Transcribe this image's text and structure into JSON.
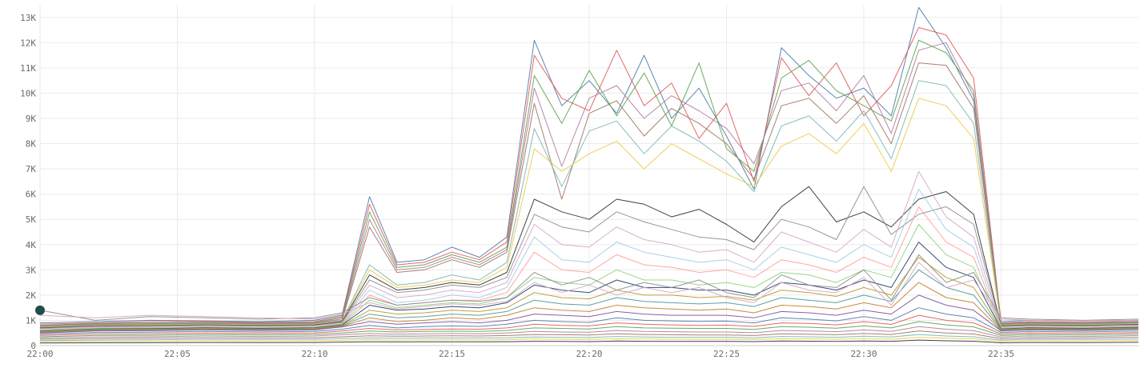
{
  "chart_data": {
    "type": "line",
    "title": "",
    "xlabel": "",
    "ylabel": "",
    "x_range": [
      "22:00",
      "22:40"
    ],
    "ylim": [
      0,
      13500
    ],
    "grid": true,
    "legend": "none",
    "x_ticks": [
      {
        "t": 0,
        "label": "22:00"
      },
      {
        "t": 5,
        "label": "22:05"
      },
      {
        "t": 10,
        "label": "22:10"
      },
      {
        "t": 15,
        "label": "22:15"
      },
      {
        "t": 20,
        "label": "22:20"
      },
      {
        "t": 25,
        "label": "22:25"
      },
      {
        "t": 30,
        "label": "22:30"
      },
      {
        "t": 35,
        "label": "22:35"
      }
    ],
    "y_ticks": [
      {
        "v": 0,
        "label": "0"
      },
      {
        "v": 1000,
        "label": "1K"
      },
      {
        "v": 2000,
        "label": "2K"
      },
      {
        "v": 3000,
        "label": "3K"
      },
      {
        "v": 4000,
        "label": "4K"
      },
      {
        "v": 5000,
        "label": "5K"
      },
      {
        "v": 6000,
        "label": "6K"
      },
      {
        "v": 7000,
        "label": "7K"
      },
      {
        "v": 8000,
        "label": "8K"
      },
      {
        "v": 9000,
        "label": "9K"
      },
      {
        "v": 10000,
        "label": "10K"
      },
      {
        "v": 11000,
        "label": "11K"
      },
      {
        "v": 12000,
        "label": "12K"
      },
      {
        "v": 13000,
        "label": "13K"
      }
    ],
    "palette": [
      "#4e79a7",
      "#e15759",
      "#59a14f",
      "#b07aa1",
      "#9c755f",
      "#76b7b2",
      "#edc948",
      "#2f2f2f",
      "#8c8c8c",
      "#d4a6c8",
      "#a0cbe8",
      "#ff9d9a",
      "#8cd17d",
      "#1f3a5f",
      "#b6992d",
      "#499894",
      "#c47c2c",
      "#7b4f9d"
    ],
    "x_minutes": [
      0,
      2,
      4,
      6,
      8,
      10,
      11,
      12,
      13,
      14,
      15,
      16,
      17,
      18,
      19,
      20,
      21,
      22,
      23,
      24,
      25,
      26,
      27,
      28,
      29,
      30,
      31,
      32,
      33,
      34,
      35,
      36,
      38,
      40
    ],
    "series": [
      {
        "values": [
          900,
          950,
          1000,
          980,
          950,
          1000,
          1200,
          5900,
          3300,
          3400,
          3900,
          3500,
          4300,
          12100,
          9500,
          10500,
          9200,
          11500,
          9000,
          10200,
          8300,
          6200,
          11800,
          10700,
          9800,
          10200,
          9100,
          13400,
          11800,
          9700,
          950,
          1000,
          980,
          1000
        ]
      },
      {
        "values": [
          850,
          900,
          950,
          960,
          920,
          950,
          1150,
          5600,
          3200,
          3300,
          3700,
          3400,
          4100,
          11500,
          9800,
          9300,
          11700,
          9500,
          10400,
          8200,
          9600,
          6500,
          11400,
          9900,
          11200,
          9100,
          10300,
          12600,
          12300,
          10600,
          900,
          950,
          930,
          960
        ]
      },
      {
        "values": [
          800,
          880,
          900,
          920,
          900,
          920,
          1100,
          5300,
          3100,
          3200,
          3600,
          3300,
          3900,
          10700,
          8800,
          10900,
          9100,
          10800,
          8700,
          11200,
          7800,
          6900,
          10600,
          11300,
          10100,
          9500,
          8900,
          12100,
          11600,
          10100,
          880,
          920,
          900,
          940
        ]
      },
      {
        "values": [
          780,
          860,
          870,
          900,
          880,
          900,
          1050,
          5000,
          3000,
          3100,
          3500,
          3200,
          3800,
          10200,
          7100,
          9800,
          10300,
          9000,
          9900,
          9300,
          8600,
          7200,
          10100,
          10400,
          9300,
          10700,
          8400,
          11700,
          12000,
          9900,
          860,
          900,
          880,
          920
        ]
      },
      {
        "values": [
          760,
          840,
          850,
          880,
          860,
          880,
          1000,
          4700,
          2900,
          3000,
          3400,
          3100,
          3700,
          9600,
          5800,
          9200,
          9700,
          8300,
          9400,
          8800,
          8000,
          6600,
          9500,
          9800,
          8800,
          9900,
          8000,
          11200,
          11100,
          9400,
          840,
          880,
          860,
          900
        ]
      },
      {
        "values": [
          740,
          820,
          830,
          860,
          840,
          860,
          980,
          3200,
          2400,
          2500,
          2800,
          2600,
          3300,
          8600,
          6300,
          8500,
          8900,
          7600,
          8700,
          8100,
          7300,
          6100,
          8700,
          9100,
          8100,
          9300,
          7400,
          10500,
          10300,
          8800,
          820,
          860,
          840,
          880
        ]
      },
      {
        "values": [
          720,
          800,
          810,
          840,
          820,
          840,
          960,
          3000,
          2300,
          2400,
          2600,
          2500,
          3100,
          7800,
          6900,
          7600,
          8100,
          7000,
          8000,
          7400,
          6800,
          6300,
          7900,
          8400,
          7600,
          8800,
          6900,
          9800,
          9500,
          8200,
          800,
          840,
          820,
          860
        ]
      },
      {
        "values": [
          700,
          780,
          790,
          820,
          800,
          820,
          940,
          2800,
          2200,
          2300,
          2500,
          2400,
          2900,
          5800,
          5300,
          5000,
          5800,
          5600,
          5100,
          5400,
          4800,
          4100,
          5500,
          6300,
          4900,
          5300,
          4700,
          5800,
          6100,
          5200,
          780,
          820,
          800,
          840
        ]
      },
      {
        "values": [
          680,
          760,
          770,
          800,
          780,
          800,
          920,
          2600,
          2100,
          2200,
          2400,
          2300,
          2700,
          5200,
          4700,
          4500,
          5300,
          4900,
          4600,
          4300,
          4200,
          3800,
          5000,
          4700,
          4200,
          6300,
          4400,
          5200,
          5500,
          4800,
          760,
          800,
          780,
          820
        ]
      },
      {
        "values": [
          660,
          740,
          750,
          780,
          760,
          780,
          900,
          2400,
          1900,
          2000,
          2200,
          2100,
          2500,
          4800,
          4000,
          3900,
          4700,
          4200,
          4000,
          3700,
          3800,
          3300,
          4500,
          4100,
          3700,
          4600,
          3900,
          6900,
          5100,
          4300,
          740,
          780,
          760,
          800
        ]
      },
      {
        "values": [
          640,
          720,
          730,
          760,
          740,
          760,
          880,
          2200,
          1700,
          1800,
          2000,
          1900,
          2300,
          4300,
          3400,
          3300,
          4100,
          3700,
          3500,
          3300,
          3400,
          3000,
          3900,
          3600,
          3300,
          4000,
          3500,
          6200,
          4600,
          3900,
          720,
          760,
          740,
          780
        ]
      },
      {
        "values": [
          620,
          700,
          710,
          740,
          720,
          740,
          860,
          2000,
          1600,
          1700,
          1800,
          1800,
          2100,
          3700,
          3000,
          2900,
          3600,
          3200,
          3100,
          2900,
          3000,
          2700,
          3400,
          3200,
          2900,
          3500,
          3100,
          5500,
          4100,
          3500,
          700,
          740,
          720,
          760
        ]
      },
      {
        "values": [
          600,
          680,
          690,
          720,
          700,
          720,
          840,
          1800,
          1500,
          1600,
          1700,
          1650,
          1900,
          2700,
          2500,
          2400,
          3000,
          2600,
          2600,
          2400,
          2500,
          2300,
          2900,
          2800,
          2500,
          3000,
          2700,
          4800,
          3600,
          3100,
          680,
          720,
          700,
          740
        ]
      },
      {
        "values": [
          580,
          660,
          670,
          700,
          680,
          700,
          820,
          1600,
          1400,
          1450,
          1550,
          1500,
          1700,
          2400,
          2200,
          2100,
          2600,
          2300,
          2300,
          2200,
          2200,
          2000,
          2500,
          2400,
          2200,
          2600,
          2300,
          4100,
          3100,
          2700,
          660,
          700,
          680,
          720
        ]
      },
      {
        "values": [
          560,
          640,
          650,
          680,
          660,
          680,
          800,
          1400,
          1250,
          1300,
          1400,
          1350,
          1500,
          2100,
          1900,
          1850,
          2200,
          2000,
          2000,
          1900,
          1950,
          1800,
          2200,
          2100,
          1950,
          2300,
          2000,
          3500,
          2700,
          2300,
          640,
          680,
          660,
          700
        ]
      },
      {
        "values": [
          540,
          620,
          630,
          660,
          640,
          660,
          780,
          1250,
          1100,
          1150,
          1250,
          1200,
          1350,
          1800,
          1650,
          1600,
          1900,
          1750,
          1700,
          1650,
          1700,
          1550,
          1900,
          1800,
          1700,
          2000,
          1750,
          3000,
          2300,
          2000,
          620,
          660,
          640,
          680
        ]
      },
      {
        "values": [
          520,
          600,
          610,
          640,
          620,
          640,
          760,
          1100,
          950,
          1000,
          1100,
          1050,
          1200,
          1500,
          1400,
          1350,
          1600,
          1500,
          1450,
          1400,
          1450,
          1300,
          1600,
          1550,
          1450,
          1700,
          1500,
          2500,
          1900,
          1700,
          600,
          640,
          620,
          660
        ]
      },
      {
        "values": [
          500,
          580,
          590,
          620,
          600,
          620,
          740,
          950,
          850,
          900,
          950,
          900,
          1000,
          1250,
          1200,
          1150,
          1350,
          1250,
          1200,
          1200,
          1200,
          1100,
          1350,
          1300,
          1200,
          1400,
          1250,
          2000,
          1600,
          1400,
          580,
          620,
          600,
          640
        ]
      },
      {
        "values": [
          450,
          520,
          530,
          560,
          540,
          560,
          650,
          800,
          700,
          750,
          780,
          760,
          850,
          1000,
          950,
          920,
          1100,
          1000,
          980,
          960,
          970,
          900,
          1100,
          1050,
          980,
          1150,
          1000,
          1500,
          1250,
          1100,
          520,
          560,
          540,
          580
        ]
      },
      {
        "values": [
          400,
          460,
          470,
          500,
          480,
          500,
          580,
          680,
          620,
          640,
          660,
          650,
          700,
          850,
          800,
          780,
          900,
          850,
          820,
          800,
          810,
          760,
          900,
          880,
          820,
          950,
          840,
          1200,
          1000,
          900,
          460,
          500,
          480,
          520
        ]
      },
      {
        "values": [
          350,
          400,
          410,
          440,
          420,
          440,
          500,
          580,
          540,
          560,
          570,
          560,
          600,
          700,
          680,
          660,
          750,
          700,
          690,
          680,
          680,
          640,
          750,
          730,
          690,
          780,
          700,
          950,
          820,
          740,
          400,
          440,
          420,
          460
        ]
      },
      {
        "values": [
          300,
          340,
          350,
          380,
          360,
          380,
          430,
          480,
          450,
          470,
          480,
          470,
          500,
          560,
          540,
          530,
          600,
          560,
          550,
          540,
          540,
          510,
          600,
          580,
          550,
          620,
          560,
          750,
          650,
          590,
          340,
          380,
          360,
          400
        ]
      },
      {
        "values": [
          250,
          280,
          290,
          310,
          300,
          310,
          350,
          390,
          370,
          380,
          390,
          380,
          400,
          440,
          430,
          420,
          470,
          440,
          430,
          420,
          420,
          400,
          470,
          450,
          430,
          480,
          440,
          580,
          500,
          460,
          280,
          310,
          300,
          330
        ]
      },
      {
        "values": [
          200,
          220,
          230,
          250,
          240,
          250,
          280,
          300,
          290,
          300,
          300,
          300,
          310,
          340,
          330,
          320,
          360,
          340,
          330,
          330,
          330,
          310,
          360,
          350,
          330,
          370,
          340,
          440,
          380,
          350,
          220,
          250,
          240,
          260
        ]
      },
      {
        "values": [
          150,
          170,
          175,
          190,
          180,
          190,
          210,
          230,
          220,
          225,
          230,
          225,
          235,
          260,
          250,
          245,
          270,
          260,
          250,
          250,
          250,
          240,
          270,
          265,
          250,
          280,
          255,
          330,
          290,
          265,
          170,
          190,
          180,
          200
        ]
      },
      {
        "values": [
          100,
          110,
          115,
          125,
          120,
          125,
          140,
          150,
          145,
          148,
          150,
          148,
          155,
          170,
          165,
          160,
          180,
          170,
          165,
          165,
          165,
          158,
          180,
          175,
          165,
          185,
          170,
          220,
          190,
          175,
          110,
          125,
          120,
          130
        ]
      },
      {
        "values": [
          1400,
          1000,
          1150,
          1100,
          1050,
          1100,
          1300,
          1900,
          1600,
          1700,
          1800,
          1750,
          1900,
          2900,
          2400,
          2700,
          2200,
          2500,
          2300,
          2600,
          2100,
          1900,
          2800,
          2400,
          2300,
          3000,
          1800,
          3600,
          2500,
          2900,
          1100,
          1050,
          1000,
          1050
        ]
      },
      {
        "values": [
          1200,
          1100,
          1200,
          1150,
          1100,
          1050,
          1250,
          1700,
          1450,
          1550,
          1650,
          1600,
          1750,
          2500,
          2100,
          2400,
          2000,
          2300,
          2100,
          2300,
          1900,
          1700,
          2500,
          2200,
          2100,
          2700,
          1600,
          3300,
          2300,
          2600,
          1050,
          1000,
          980,
          1000
        ]
      }
    ]
  }
}
